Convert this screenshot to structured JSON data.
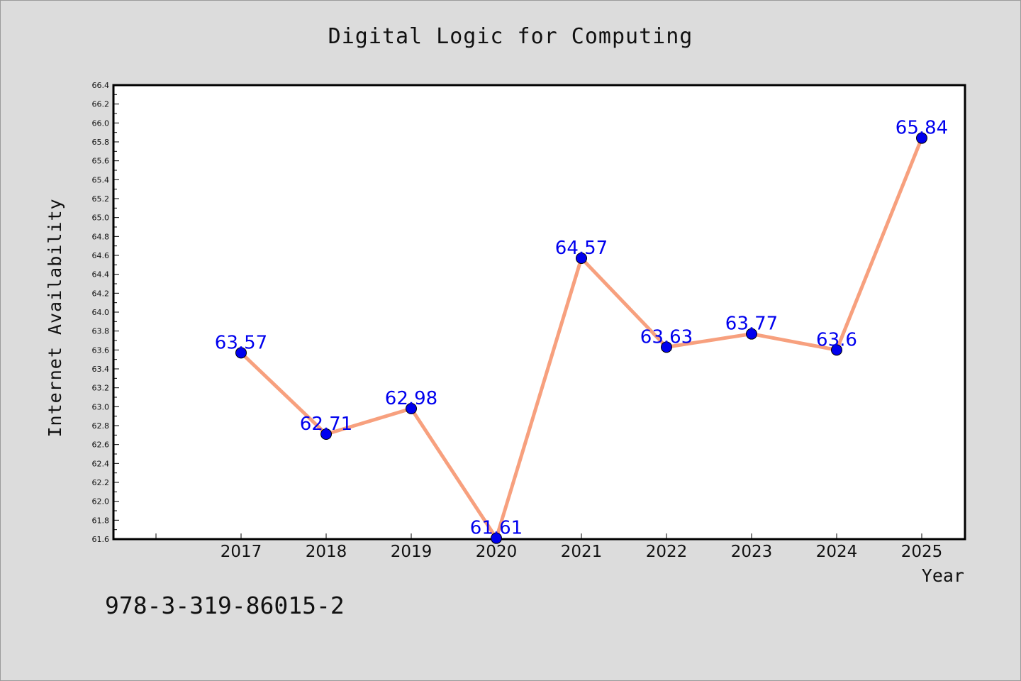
{
  "chart_data": {
    "type": "line",
    "title": "Digital Logic for Computing",
    "xlabel": "Year",
    "ylabel": "Internet Availability",
    "x": [
      "2017",
      "2018",
      "2019",
      "2020",
      "2021",
      "2022",
      "2023",
      "2024",
      "2025"
    ],
    "series": [
      {
        "values": [
          63.57,
          62.71,
          62.98,
          61.61,
          64.57,
          63.63,
          63.77,
          63.6,
          65.84
        ],
        "labels": [
          "63.57",
          "62.71",
          "62.98",
          "61.61",
          "64.57",
          "63.63",
          "63.77",
          "63.6",
          "65.84"
        ]
      }
    ],
    "ylim": [
      61.6,
      66.4
    ],
    "yticks": [
      "61.6",
      "61.8",
      "62.0",
      "62.2",
      "62.4",
      "62.6",
      "62.8",
      "63.0",
      "63.2",
      "63.4",
      "63.6",
      "63.8",
      "64.0",
      "64.2",
      "64.4",
      "64.6",
      "64.8",
      "65.0",
      "65.2",
      "65.4",
      "65.6",
      "65.8",
      "66.0",
      "66.2",
      "66.4"
    ],
    "grid": false,
    "colors": {
      "line": "#f7a07e",
      "marker": "#0000ee",
      "label": "#0000ee",
      "background": "#dcdcdc",
      "plot_background": "#ffffff"
    }
  },
  "footer": {
    "isbn": "978-3-319-86015-2"
  }
}
